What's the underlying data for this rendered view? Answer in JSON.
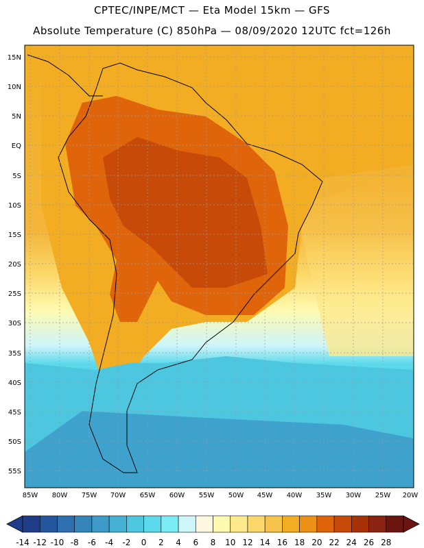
{
  "title_line1": "CPTEC/INPE/MCT —  Eta Model 15km — GFS",
  "title_line2": "Absolute Temperature (C) 850hPa — 08/09/2020 12UTC fct=126h",
  "lat_labels": [
    "15N",
    "10N",
    "5N",
    "EQ",
    "5S",
    "10S",
    "15S",
    "20S",
    "25S",
    "30S",
    "35S",
    "40S",
    "45S",
    "50S",
    "55S"
  ],
  "lon_labels": [
    "85W",
    "80W",
    "75W",
    "70W",
    "65W",
    "60W",
    "55W",
    "50W",
    "45W",
    "40W",
    "35W",
    "30W",
    "25W",
    "20W"
  ],
  "colorbar": {
    "labels": [
      "-14",
      "-12",
      "-10",
      "-8",
      "-6",
      "-4",
      "-2",
      "0",
      "2",
      "4",
      "6",
      "8",
      "10",
      "12",
      "14",
      "16",
      "18",
      "20",
      "22",
      "24",
      "26",
      "28"
    ],
    "colors": [
      "#1f3c88",
      "#2456a0",
      "#2e6fb0",
      "#3585bd",
      "#3c9bc9",
      "#44b1d4",
      "#4dc6df",
      "#5cd9ea",
      "#79ecf4",
      "#cdf5fa",
      "#fff8e0",
      "#fffab0",
      "#ffe98a",
      "#fcd86a",
      "#f7c34a",
      "#f2ad22",
      "#eb9115",
      "#e0650a",
      "#c84a08",
      "#a83208",
      "#8a2410",
      "#6b1410"
    ]
  }
}
